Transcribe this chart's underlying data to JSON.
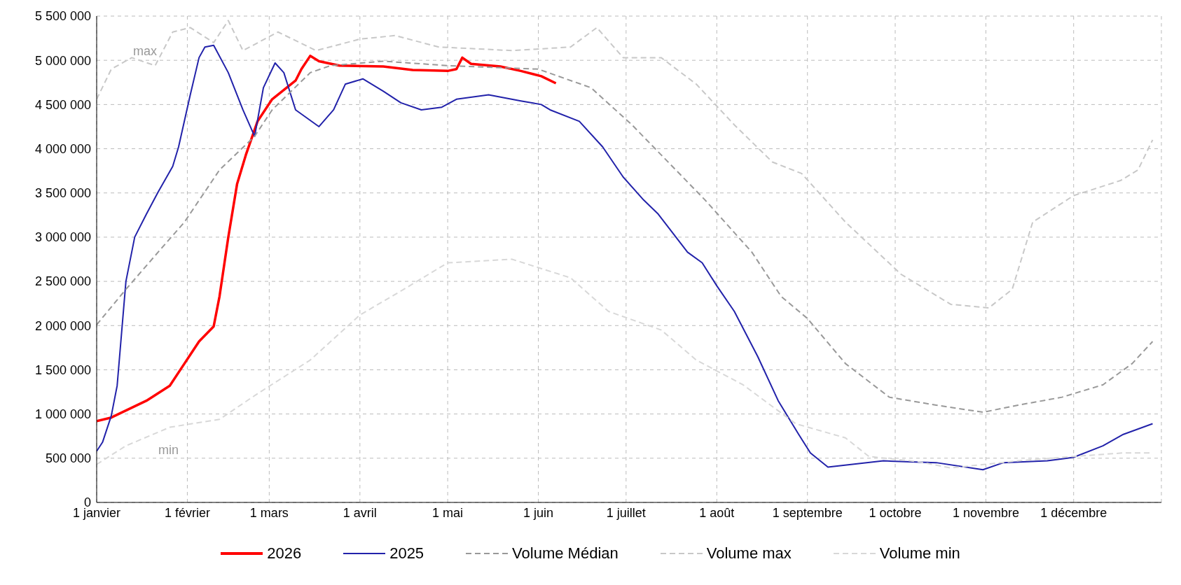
{
  "chart_data": {
    "type": "line",
    "legend": "bottom",
    "grid": true,
    "xlim": [
      "--01-01",
      "--12-31"
    ],
    "xticks": [
      {
        "value": "--01-01",
        "label": "1 janvier"
      },
      {
        "value": "--02-01",
        "label": "1 février"
      },
      {
        "value": "--03-01",
        "label": "1 mars"
      },
      {
        "value": "--04-01",
        "label": "1 avril"
      },
      {
        "value": "--05-01",
        "label": "1 mai"
      },
      {
        "value": "--06-01",
        "label": "1 juin"
      },
      {
        "value": "--07-01",
        "label": "1 juillet"
      },
      {
        "value": "--08-01",
        "label": "1 août"
      },
      {
        "value": "--09-01",
        "label": "1 septembre"
      },
      {
        "value": "--10-01",
        "label": "1 octobre"
      },
      {
        "value": "--11-01",
        "label": "1 novembre"
      },
      {
        "value": "--12-01",
        "label": "1 décembre"
      }
    ],
    "ylim": [
      0,
      5500000
    ],
    "yticks": [
      0,
      {
        "value": 500000,
        "label": "500 000"
      },
      {
        "value": 1000000,
        "label": "1 000 000"
      },
      {
        "value": 1500000,
        "label": "1 500 000"
      },
      {
        "value": 2000000,
        "label": "2 000 000"
      },
      {
        "value": 2500000,
        "label": "2 500 000"
      },
      {
        "value": 3000000,
        "label": "3 000 000"
      },
      {
        "value": 3500000,
        "label": "3 500 000"
      },
      {
        "value": 4000000,
        "label": "4 000 000"
      },
      {
        "value": 4500000,
        "label": "4 500 000"
      },
      {
        "value": 5000000,
        "label": "5 000 000"
      },
      {
        "value": 5500000,
        "label": "5 500 000"
      }
    ],
    "annotations": [
      "max",
      "min"
    ],
    "series": [
      {
        "name": "2026",
        "color": "#ff0000",
        "line_style": "solid",
        "x": [
          "--01-01",
          "--01-06",
          "--01-18",
          "--01-26",
          "--01-31",
          "--02-05",
          "--02-10",
          "--02-12",
          "--02-15",
          "--02-18",
          "--02-21",
          "--02-25",
          "--03-02",
          "--03-10",
          "--03-12",
          "--03-15",
          "--03-18",
          "--03-25",
          "--04-09",
          "--04-19",
          "--05-01",
          "--05-04",
          "--05-06",
          "--05-09",
          "--05-19",
          "--05-26",
          "--06-02",
          "--06-07"
        ],
        "values": [
          920000,
          960000,
          1150000,
          1320000,
          1570000,
          1820000,
          1990000,
          2330000,
          3000000,
          3600000,
          3930000,
          4310000,
          4560000,
          4770000,
          4900000,
          5050000,
          4990000,
          4940000,
          4930000,
          4890000,
          4880000,
          4900000,
          5030000,
          4960000,
          4930000,
          4880000,
          4820000,
          4740000
        ]
      },
      {
        "name": "2025",
        "color": "#2222aa",
        "line_style": "solid",
        "x": [
          "--01-01",
          "--01-03",
          "--01-06",
          "--01-08",
          "--01-11",
          "--01-14",
          "--01-18",
          "--01-22",
          "--01-27",
          "--01-29",
          "--02-02",
          "--02-05",
          "--02-07",
          "--02-10",
          "--02-15",
          "--02-20",
          "--02-24",
          "--02-27",
          "--03-03",
          "--03-06",
          "--03-10",
          "--03-18",
          "--03-23",
          "--03-27",
          "--04-02",
          "--04-09",
          "--04-15",
          "--04-22",
          "--04-29",
          "--05-04",
          "--05-15",
          "--05-26",
          "--06-02",
          "--06-05",
          "--06-15",
          "--06-23",
          "--06-30",
          "--07-07",
          "--07-12",
          "--07-22",
          "--07-27",
          "--08-01",
          "--08-07",
          "--08-15",
          "--08-22",
          "--08-29",
          "--09-02",
          "--09-08",
          "--09-27",
          "--10-15",
          "--10-31",
          "--11-07",
          "--11-22",
          "--12-01",
          "--12-11",
          "--12-18",
          "--12-28"
        ],
        "values": [
          580000,
          680000,
          980000,
          1320000,
          2500000,
          3000000,
          3260000,
          3510000,
          3800000,
          4020000,
          4610000,
          5030000,
          5150000,
          5170000,
          4860000,
          4440000,
          4140000,
          4690000,
          4970000,
          4860000,
          4440000,
          4250000,
          4440000,
          4730000,
          4790000,
          4650000,
          4520000,
          4440000,
          4470000,
          4560000,
          4610000,
          4540000,
          4500000,
          4440000,
          4310000,
          4020000,
          3680000,
          3420000,
          3260000,
          2830000,
          2710000,
          2450000,
          2160000,
          1650000,
          1150000,
          770000,
          560000,
          400000,
          470000,
          450000,
          370000,
          450000,
          470000,
          510000,
          640000,
          770000,
          890000
        ]
      },
      {
        "name": "Volume Médian",
        "color": "#999999",
        "line_style": "dashed",
        "x": [
          "--01-01",
          "--01-11",
          "--01-22",
          "--01-31",
          "--02-12",
          "--02-24",
          "--03-02",
          "--03-15",
          "--03-22",
          "--04-09",
          "--05-01",
          "--06-01",
          "--06-19",
          "--07-03",
          "--07-13",
          "--07-28",
          "--08-13",
          "--08-23",
          "--09-01",
          "--09-14",
          "--09-29",
          "--10-15",
          "--10-31",
          "--11-12",
          "--11-27",
          "--12-11",
          "--12-21",
          "--12-28"
        ],
        "values": [
          2010000,
          2410000,
          2830000,
          3170000,
          3760000,
          4140000,
          4440000,
          4860000,
          4940000,
          4990000,
          4940000,
          4900000,
          4690000,
          4270000,
          3930000,
          3420000,
          2830000,
          2330000,
          2080000,
          1570000,
          1190000,
          1100000,
          1020000,
          1100000,
          1190000,
          1330000,
          1570000,
          1820000
        ]
      },
      {
        "name": "Volume max",
        "color": "#c8c8c8",
        "line_style": "dashed",
        "x": [
          "--01-01",
          "--01-06",
          "--01-13",
          "--01-21",
          "--01-27",
          "--02-02",
          "--02-10",
          "--02-15",
          "--02-20",
          "--03-04",
          "--03-17",
          "--04-01",
          "--04-13",
          "--04-28",
          "--05-23",
          "--06-12",
          "--06-21",
          "--06-30",
          "--07-13",
          "--07-25",
          "--08-07",
          "--08-20",
          "--08-30",
          "--09-14",
          "--10-03",
          "--10-20",
          "--11-02",
          "--11-10",
          "--11-17",
          "--12-01",
          "--12-17",
          "--12-23",
          "--12-28"
        ],
        "values": [
          4560000,
          4900000,
          5030000,
          4940000,
          5320000,
          5370000,
          5200000,
          5450000,
          5110000,
          5320000,
          5110000,
          5240000,
          5280000,
          5150000,
          5110000,
          5150000,
          5370000,
          5030000,
          5030000,
          4730000,
          4270000,
          3850000,
          3720000,
          3170000,
          2580000,
          2240000,
          2200000,
          2410000,
          3170000,
          3470000,
          3640000,
          3760000,
          4100000
        ]
      },
      {
        "name": "Volume min",
        "color": "#d8d8d8",
        "line_style": "dashed",
        "x": [
          "--01-01",
          "--01-11",
          "--01-26",
          "--02-12",
          "--02-25",
          "--03-15",
          "--04-01",
          "--04-16",
          "--05-01",
          "--05-23",
          "--06-12",
          "--06-25",
          "--07-13",
          "--07-25",
          "--08-10",
          "--08-28",
          "--09-14",
          "--09-22",
          "--10-09",
          "--10-20",
          "--11-12",
          "--12-01",
          "--12-18",
          "--12-28"
        ],
        "values": [
          430000,
          640000,
          850000,
          940000,
          1230000,
          1610000,
          2120000,
          2410000,
          2710000,
          2750000,
          2540000,
          2160000,
          1950000,
          1610000,
          1330000,
          890000,
          730000,
          520000,
          460000,
          390000,
          470000,
          520000,
          560000,
          560000
        ]
      }
    ]
  }
}
